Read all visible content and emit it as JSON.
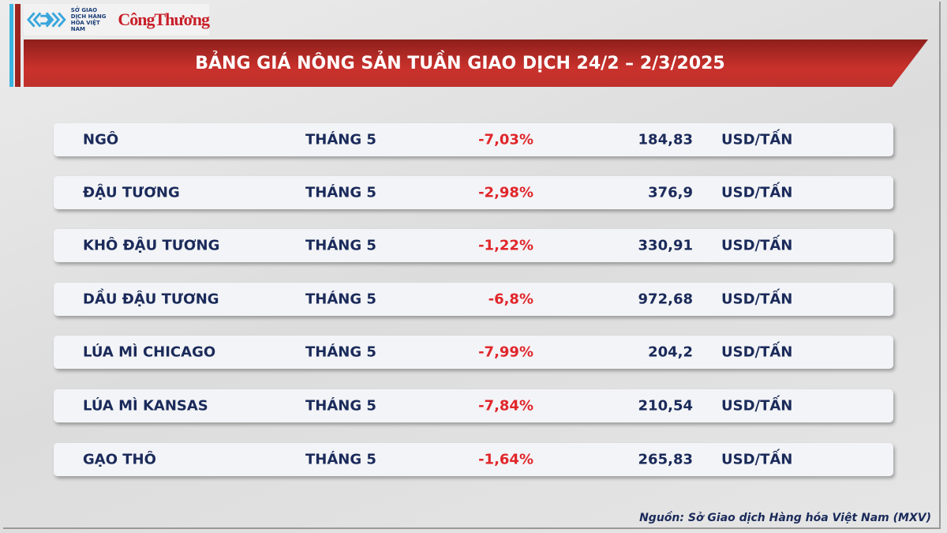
{
  "logo": {
    "mxv_text": "SỞ GIAO DỊCH HÀNG HÓA VIỆT NAM",
    "brand": "CôngThương"
  },
  "title": "BẢNG GIÁ NÔNG SẢN TUẦN GIAO DỊCH 24/2 – 2/3/2025",
  "rows": [
    {
      "name": "NGÔ",
      "month": "THÁNG 5",
      "change": "-7,03%",
      "price": "184,83",
      "unit": "USD/TẤN"
    },
    {
      "name": "ĐẬU TƯƠNG",
      "month": "THÁNG 5",
      "change": "-2,98%",
      "price": "376,9",
      "unit": "USD/TẤN"
    },
    {
      "name": "KHÔ ĐẬU TƯƠNG",
      "month": "THÁNG 5",
      "change": "-1,22%",
      "price": "330,91",
      "unit": "USD/TẤN"
    },
    {
      "name": "DẦU ĐẬU TƯƠNG",
      "month": "THÁNG 5",
      "change": "-6,8%",
      "price": "972,68",
      "unit": "USD/TẤN"
    },
    {
      "name": "LÚA MÌ CHICAGO",
      "month": "THÁNG 5",
      "change": "-7,99%",
      "price": "204,2",
      "unit": "USD/TẤN"
    },
    {
      "name": "LÚA MÌ KANSAS",
      "month": "THÁNG 5",
      "change": "-7,84%",
      "price": "210,54",
      "unit": "USD/TẤN"
    },
    {
      "name": "GẠO THÔ",
      "month": "THÁNG 5",
      "change": "-1,64%",
      "price": "265,83",
      "unit": "USD/TẤN"
    }
  ],
  "source": "Nguồn: Sở Giao dịch Hàng hóa Việt Nam (MXV)",
  "colors": {
    "banner": "#c0312d",
    "negative": "#e0262b",
    "text": "#1a2a5a",
    "accent_blue": "#3bb3e0"
  }
}
